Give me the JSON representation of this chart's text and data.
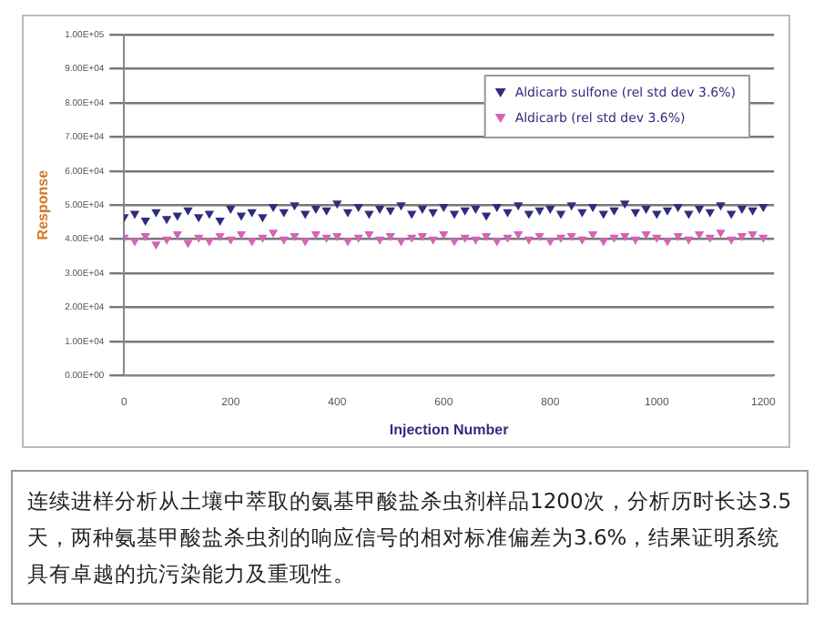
{
  "chart_data": {
    "type": "scatter",
    "xlabel": "Injection Number",
    "ylabel": "Response",
    "x": [
      0,
      20,
      40,
      60,
      80,
      100,
      120,
      140,
      160,
      180,
      200,
      220,
      240,
      260,
      280,
      300,
      320,
      340,
      360,
      380,
      400,
      420,
      440,
      460,
      480,
      500,
      520,
      540,
      560,
      580,
      600,
      620,
      640,
      660,
      680,
      700,
      720,
      740,
      760,
      780,
      800,
      820,
      840,
      860,
      880,
      900,
      920,
      940,
      960,
      980,
      1000,
      1020,
      1040,
      1060,
      1080,
      1100,
      1120,
      1140,
      1160,
      1180,
      1200
    ],
    "series": [
      {
        "name": "Aldicarb sulfone (rel std dev 3.6%)",
        "color": "#2e2d7f",
        "values": [
          46500,
          47500,
          45500,
          48000,
          46000,
          47000,
          48500,
          46500,
          47500,
          45500,
          49000,
          47000,
          48000,
          46500,
          49500,
          48000,
          50000,
          47500,
          49000,
          48500,
          50500,
          48000,
          49500,
          47500,
          49000,
          48500,
          50000,
          47500,
          49000,
          48000,
          49500,
          47500,
          48500,
          49000,
          47000,
          49500,
          48000,
          50000,
          47500,
          48500,
          49000,
          47500,
          50000,
          48000,
          49500,
          47500,
          48500,
          50500,
          48000,
          49000,
          47500,
          48500,
          49500,
          47500,
          49000,
          48000,
          50000,
          47500,
          49000,
          48500,
          49500
        ]
      },
      {
        "name": "Aldicarb (rel std dev 3.6%)",
        "color": "#d663b8",
        "values": [
          40500,
          39500,
          41000,
          38500,
          40000,
          41500,
          39000,
          40500,
          39500,
          41000,
          40000,
          41500,
          39500,
          40500,
          42000,
          40000,
          41000,
          39500,
          41500,
          40500,
          41000,
          39500,
          40500,
          41500,
          40000,
          41000,
          39500,
          40500,
          41000,
          40000,
          41500,
          39500,
          40500,
          40000,
          41000,
          39500,
          40500,
          41500,
          40000,
          41000,
          39500,
          40500,
          41000,
          40000,
          41500,
          39500,
          40500,
          41000,
          40000,
          41500,
          40500,
          39500,
          41000,
          40000,
          41500,
          40500,
          42000,
          40000,
          41000,
          41500,
          40500
        ]
      }
    ],
    "xlim": [
      0,
      1220
    ],
    "xticks": [
      0,
      200,
      400,
      600,
      800,
      1000,
      1200
    ],
    "ylim": [
      0,
      100000
    ],
    "yticks": [
      {
        "value": 0,
        "label": "0.00E+00"
      },
      {
        "value": 10000,
        "label": "1.00E+04"
      },
      {
        "value": 20000,
        "label": "2.00E+04"
      },
      {
        "value": 30000,
        "label": "3.00E+04"
      },
      {
        "value": 40000,
        "label": "4.00E+04"
      },
      {
        "value": 50000,
        "label": "5.00E+04"
      },
      {
        "value": 60000,
        "label": "6.00E+04"
      },
      {
        "value": 70000,
        "label": "7.00E+04"
      },
      {
        "value": 80000,
        "label": "8.00E+04"
      },
      {
        "value": 90000,
        "label": "9.00E+04"
      },
      {
        "value": 100000,
        "label": "1.00E+05"
      }
    ],
    "grid": "y",
    "legend": "top right",
    "marker": "triangle",
    "annotations": [
      "连续进样分析从土壤中萃取的氨基甲酸盐杀虫剂样品1200次，分析历时长达3.5天，两种氨基甲酸盐杀虫剂的响应信号的相对标准偏差为3.6%，结果证明系统具有卓越的抗污染能力及重现性。"
    ]
  }
}
